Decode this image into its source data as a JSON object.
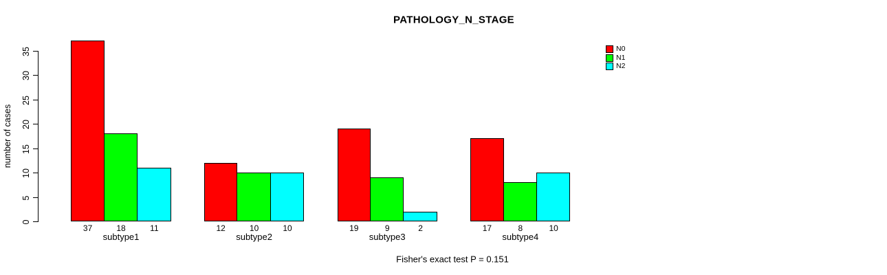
{
  "title": "PATHOLOGY_N_STAGE",
  "footer": "Fisher's exact test P = 0.151",
  "colors": {
    "background": "#ffffff",
    "axis": "#000000",
    "text": "#000000",
    "n0": "#ff0000",
    "n1": "#00ff00",
    "n2": "#00ffff"
  },
  "chart_data": {
    "type": "bar",
    "title": "PATHOLOGY_N_STAGE",
    "categories": [
      "subtype1",
      "subtype2",
      "subtype3",
      "subtype4"
    ],
    "series": [
      {
        "name": "N0",
        "color": "#ff0000",
        "values": [
          37,
          12,
          19,
          17
        ]
      },
      {
        "name": "N1",
        "color": "#00ff00",
        "values": [
          18,
          10,
          9,
          8
        ]
      },
      {
        "name": "N2",
        "color": "#00ffff",
        "values": [
          11,
          10,
          2,
          10
        ]
      }
    ],
    "ylabel": "number of cases",
    "xlabel": "",
    "ylim": [
      0,
      35
    ],
    "yticks": [
      0,
      5,
      10,
      15,
      20,
      25,
      30,
      35
    ],
    "grid": false,
    "legend_position": "top-right",
    "bar_value_labels_shown": true,
    "annotation": "Fisher's exact test P = 0.151"
  }
}
